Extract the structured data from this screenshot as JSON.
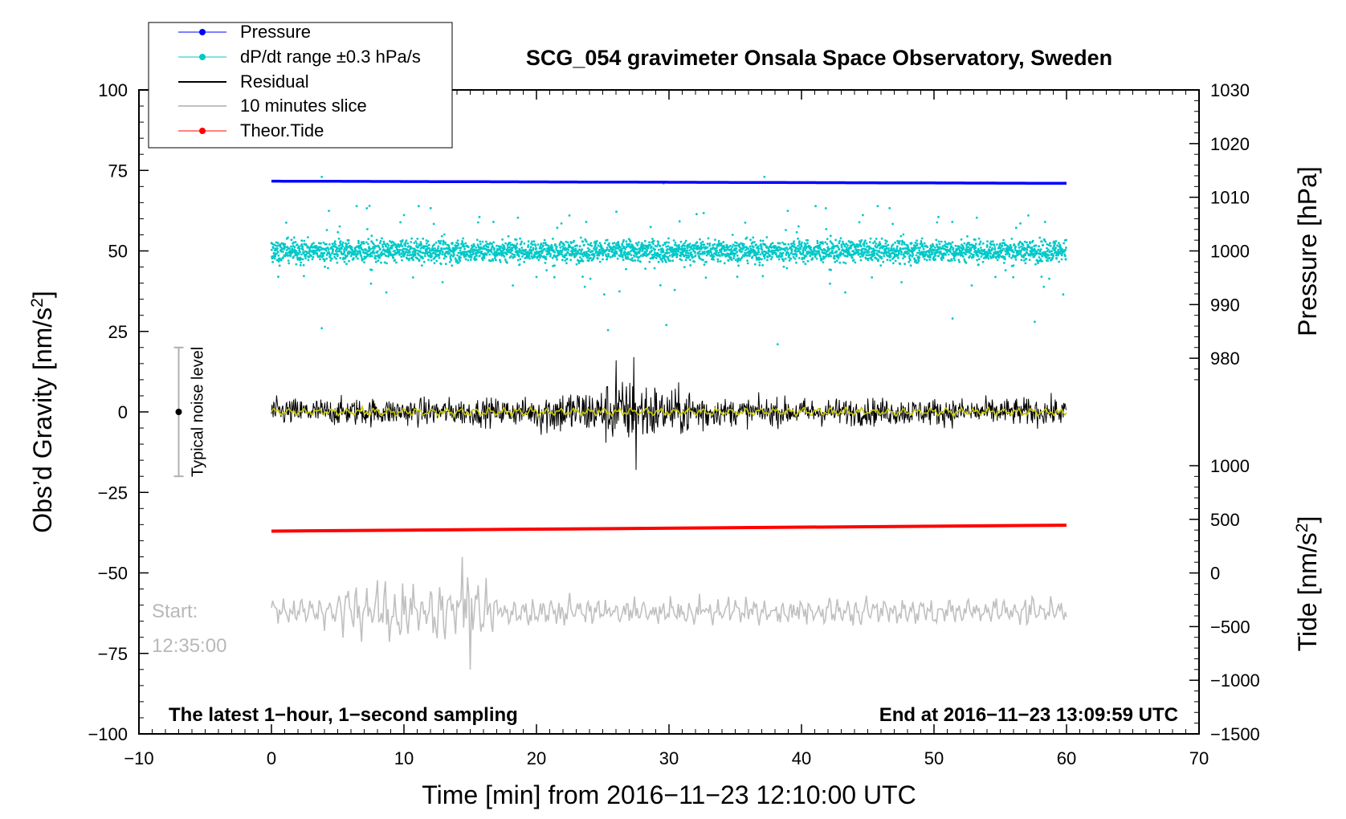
{
  "chart_data": {
    "type": "line",
    "title": "SCG_054 gravimeter Onsala Space Observatory, Sweden",
    "xlabel": "Time [min] from 2016−11−23 12:10:00 UTC",
    "ylabel_left": "Obs’d Gravity [nm/s",
    "ylabel_left_sup": "2",
    "ylabel_left_close": "]",
    "ylabel_pressure": "Pressure [hPa]",
    "ylabel_tide": "Tide [nm/s",
    "ylabel_tide_sup": "2",
    "ylabel_tide_close": "]",
    "xlim": [
      -10,
      70
    ],
    "ylim": [
      -100,
      100
    ],
    "x_ticks": [
      {
        "value": -10,
        "label": "−10"
      },
      {
        "value": 0,
        "label": "0"
      },
      {
        "value": 10,
        "label": "10"
      },
      {
        "value": 20,
        "label": "20"
      },
      {
        "value": 30,
        "label": "30"
      },
      {
        "value": 40,
        "label": "40"
      },
      {
        "value": 50,
        "label": "50"
      },
      {
        "value": 60,
        "label": "60"
      },
      {
        "value": 70,
        "label": "70"
      }
    ],
    "y_ticks_left": [
      {
        "value": 100,
        "label": "100"
      },
      {
        "value": 75,
        "label": "75"
      },
      {
        "value": 50,
        "label": "50"
      },
      {
        "value": 25,
        "label": "25"
      },
      {
        "value": 0,
        "label": "0"
      },
      {
        "value": -25,
        "label": "−25"
      },
      {
        "value": -50,
        "label": "−50"
      },
      {
        "value": -75,
        "label": "−75"
      },
      {
        "value": -100,
        "label": "−100"
      }
    ],
    "pressure_axis": {
      "ticks": [
        {
          "value": 1030,
          "label": "1030"
        },
        {
          "value": 1020,
          "label": "1020"
        },
        {
          "value": 1010,
          "label": "1010"
        },
        {
          "value": 1000,
          "label": "1000"
        },
        {
          "value": 990,
          "label": "990"
        },
        {
          "value": 980,
          "label": "980"
        }
      ],
      "map": {
        "p1": 1030,
        "g1": 100,
        "p2": 1000,
        "g2": 50
      }
    },
    "tide_axis": {
      "ticks": [
        {
          "value": 1000,
          "label": "1000"
        },
        {
          "value": 500,
          "label": "500"
        },
        {
          "value": 0,
          "label": "0"
        },
        {
          "value": -500,
          "label": "−500"
        },
        {
          "value": -1000,
          "label": "−1000"
        },
        {
          "value": -1500,
          "label": "−1500"
        }
      ],
      "map": {
        "t1": 1000,
        "g1": -16.7,
        "t2": -1500,
        "g2": -100
      }
    },
    "series": [
      {
        "name": "Pressure",
        "color": "#0000ff",
        "x_range": [
          0,
          60
        ],
        "pressure_start": 1013.0,
        "pressure_end": 1012.6
      },
      {
        "name": "dP/dt range ±0.3 hPa/s",
        "color": "#00c8c8",
        "x_range": [
          0,
          60
        ],
        "center": 50,
        "spread": 3.5
      },
      {
        "name": "Residual",
        "color": "#000000",
        "x_range": [
          0,
          60
        ],
        "center": 0,
        "amplitude": 4,
        "peak_range": [
          -18,
          17
        ]
      },
      {
        "name": "10 minutes slice",
        "color": "#c0c0c0",
        "x_range": [
          0,
          60
        ],
        "center": -62,
        "amplitude": 6,
        "peak_range": [
          -80,
          -45
        ]
      },
      {
        "name": "Theor.Tide",
        "color": "#ff0000",
        "x_range": [
          0,
          60
        ],
        "tide_start": 390,
        "tide_end": 445
      }
    ],
    "filtered_residual_color": "#c8c800",
    "legend": {
      "position": "top-left",
      "entries": [
        {
          "label": "Pressure",
          "color": "#0000ff",
          "marker": true
        },
        {
          "label": "dP/dt range ±0.3 hPa/s",
          "color": "#00c8c8",
          "marker": true
        },
        {
          "label": "Residual",
          "color": "#000000",
          "marker": false
        },
        {
          "label": "10 minutes slice",
          "color": "#c0c0c0",
          "marker": false
        },
        {
          "label": "Theor.Tide",
          "color": "#ff0000",
          "marker": true
        }
      ]
    },
    "noise_bar": {
      "label": "Typical noise level",
      "x": -7,
      "low": -20,
      "high": 20,
      "center": 0
    },
    "annotations": {
      "start_label": "Start:",
      "start_time": "12:35:00",
      "bottom_left": "The latest 1−hour, 1−second sampling",
      "bottom_right": "End at 2016−11−23 13:09:59 UTC"
    }
  }
}
